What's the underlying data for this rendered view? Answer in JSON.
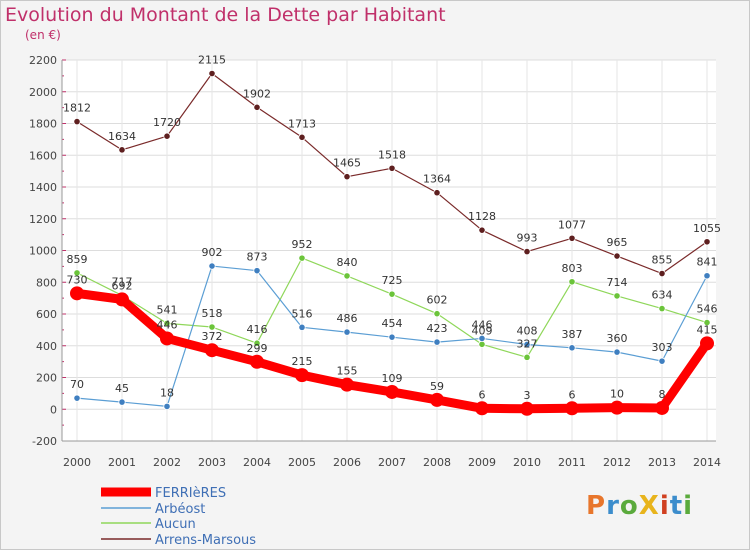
{
  "title": "Evolution du Montant de la Dette par Habitant",
  "subtitle": "(en €)",
  "logo": {
    "text": "ProXiti",
    "colors": [
      "#e8762c",
      "#3c8dcc",
      "#5aaa3c",
      "#e8b41c",
      "#d04020",
      "#3c8dcc",
      "#5aaa3c"
    ]
  },
  "chart_data": {
    "type": "line",
    "categories": [
      "2000",
      "2001",
      "2002",
      "2003",
      "2004",
      "2005",
      "2006",
      "2007",
      "2008",
      "2009",
      "2010",
      "2011",
      "2012",
      "2013",
      "2014"
    ],
    "y_ticks": [
      "-200",
      "0",
      "200",
      "400",
      "600",
      "800",
      "1000",
      "1200",
      "1400",
      "1600",
      "1800",
      "2000",
      "2200"
    ],
    "ylim": [
      -200,
      2200
    ],
    "grid": true,
    "legend_position": "bottom-left",
    "series": [
      {
        "name": "FERRIèRES",
        "color": "#ff0000",
        "marker": "#ff0000",
        "values": [
          730,
          692,
          446,
          372,
          299,
          215,
          155,
          109,
          59,
          6,
          3,
          6,
          10,
          8,
          415
        ]
      },
      {
        "name": "Arbéost",
        "color": "#5b9ed4",
        "marker": "#3f7fc0",
        "values": [
          70,
          45,
          18,
          902,
          873,
          516,
          486,
          454,
          423,
          446,
          408,
          387,
          360,
          303,
          841
        ]
      },
      {
        "name": "Aucun",
        "color": "#8fd75a",
        "marker": "#6bc43a",
        "values": [
          859,
          717,
          541,
          518,
          416,
          952,
          840,
          725,
          602,
          409,
          327,
          803,
          714,
          634,
          546
        ]
      },
      {
        "name": "Arrens-Marsous",
        "color": "#7a2a2a",
        "marker": "#5e1f1f",
        "values": [
          1812,
          1634,
          1720,
          2115,
          1902,
          1713,
          1465,
          1518,
          1364,
          1128,
          993,
          1077,
          965,
          855,
          1055
        ]
      }
    ]
  }
}
